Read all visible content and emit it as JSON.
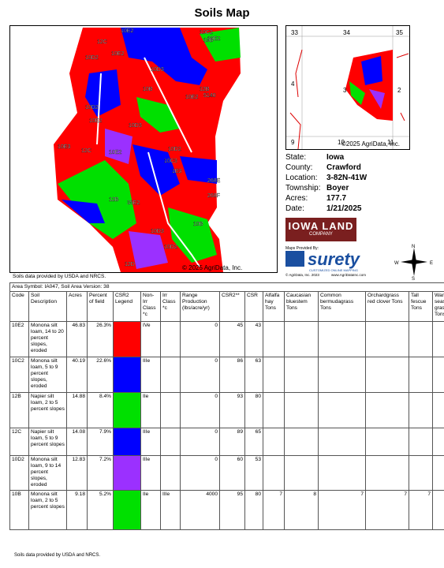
{
  "header": {
    "title": "Soils Map"
  },
  "map": {
    "labels": [
      "10E2",
      "12C",
      "10D2",
      "10E2",
      "10C2",
      "10E2",
      "10B",
      "10D3",
      "10B",
      "10E2",
      "5140",
      "12B",
      "10D2",
      "10E2",
      "10D3",
      "12C",
      "10E3",
      "10E2",
      "10D2",
      "10C3",
      "1E3",
      "268E",
      "268F",
      "12B",
      "35E2",
      "10B",
      "10D3",
      "10D2",
      "12D"
    ],
    "copyright": "© 2025 AgriData, Inc.",
    "source": "Soils data provided by USDA and NRCS."
  },
  "locator": {
    "sections": [
      "33",
      "34",
      "35",
      "4",
      "3",
      "2",
      "9",
      "10",
      "11"
    ],
    "copyright": "©2025 AgriData, Inc."
  },
  "info": [
    {
      "label": "State:",
      "value": "Iowa"
    },
    {
      "label": "County:",
      "value": "Crawford"
    },
    {
      "label": "Location:",
      "value": "3-82N-41W"
    },
    {
      "label": "Township:",
      "value": "Boyer"
    },
    {
      "label": "Acres:",
      "value": "177.7"
    },
    {
      "label": "Date:",
      "value": "1/21/2025"
    }
  ],
  "logos": {
    "company": "IOWA LAND",
    "company_sub": "COMPANY",
    "provided": "Maps Provided By:",
    "brand": "surety",
    "tagline": "CUSTOMIZED ONLINE MAPPING",
    "copyright": "© AgriData, Inc. 2023",
    "url": "www.AgriDataInc.com",
    "compass": [
      "N",
      "E",
      "S",
      "W"
    ]
  },
  "table": {
    "area": "Area Symbol: IA047, Soil Area Version: 38",
    "headers": [
      "Code",
      "Soil Description",
      "Acres",
      "Percent of field",
      "CSR2 Legend",
      "Non-Irr Class *c",
      "Irr Class *c",
      "Range Production (lbs/acre/yr)",
      "CSR2**",
      "CSR",
      "Alfalfa hay Tons",
      "Caucasian bluestem Tons",
      "Common bermudagrass Tons",
      "Orchardgrass red clover Tons",
      "Tall fescue Tons",
      "Warm season grasses Tons"
    ],
    "rows": [
      {
        "code": "10E2",
        "description": "Monona silt loam, 14 to 20 percent slopes, eroded",
        "acres": "46.83",
        "percent": "26.3%",
        "legend_color": "#ff0000",
        "non_irr": "IVe",
        "range": "0",
        "csr2": "45",
        "csr": "43"
      },
      {
        "code": "10C2",
        "description": "Monona silt loam, 5 to 9 percent slopes, eroded",
        "acres": "40.19",
        "percent": "22.6%",
        "legend_color": "#0000ff",
        "non_irr": "IIIe",
        "range": "0",
        "csr2": "86",
        "csr": "63"
      },
      {
        "code": "12B",
        "description": "Napier silt loam, 2 to 5 percent slopes",
        "acres": "14.88",
        "percent": "8.4%",
        "legend_color": "#00e000",
        "non_irr": "IIe",
        "range": "0",
        "csr2": "93",
        "csr": "80"
      },
      {
        "code": "12C",
        "description": "Napier silt loam, 5 to 9 percent slopes",
        "acres": "14.08",
        "percent": "7.9%",
        "legend_color": "#0000ff",
        "non_irr": "IIIe",
        "range": "0",
        "csr2": "89",
        "csr": "65"
      },
      {
        "code": "10D2",
        "description": "Monona silt loam, 9 to 14 percent slopes, eroded",
        "acres": "12.83",
        "percent": "7.2%",
        "legend_color": "#9b30ff",
        "non_irr": "IIIe",
        "range": "0",
        "csr2": "60",
        "csr": "53"
      },
      {
        "code": "10B",
        "description": "Monona silt loam, 2 to 5 percent slopes",
        "acres": "9.18",
        "percent": "5.2%",
        "legend_color": "#00e000",
        "non_irr": "IIe",
        "irr": "IIIe",
        "range": "4000",
        "csr2": "95",
        "csr": "80",
        "alfalfa": "7",
        "caucasian": "8",
        "bermuda": "7",
        "orchard": "7",
        "fescue": "7"
      }
    ]
  },
  "footer": {
    "note": "Soils data provided by USDA and NRCS."
  }
}
